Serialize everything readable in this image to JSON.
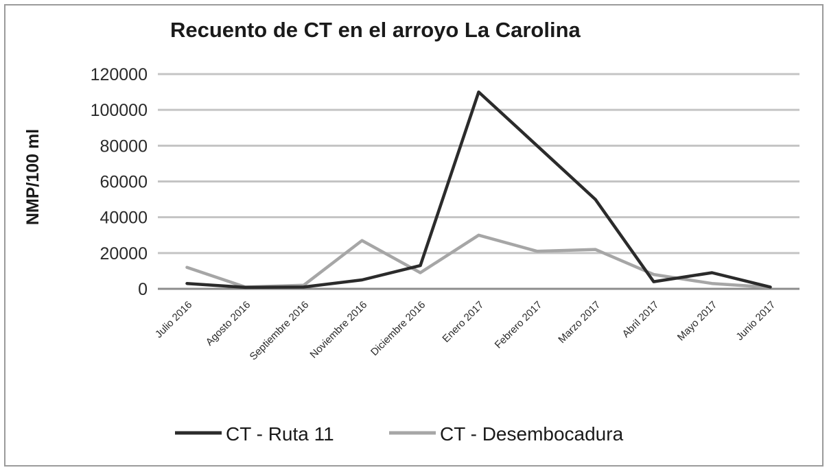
{
  "chart_data": {
    "type": "line",
    "title": "Recuento de CT en el arroyo La Carolina",
    "xlabel": "",
    "ylabel": "NMP/100 ml",
    "ylim": [
      0,
      120000
    ],
    "yticks": [
      0,
      20000,
      40000,
      60000,
      80000,
      100000,
      120000
    ],
    "grid": true,
    "legend_position": "bottom",
    "categories": [
      "Julio 2016",
      "Agosto 2016",
      "Septiembre 2016",
      "Noviembre 2016",
      "Diciembre 2016",
      "Enero 2017",
      "Febrero 2017",
      "Marzo 2017",
      "Abril 2017",
      "Mayo 2017",
      "Junio 2017"
    ],
    "series": [
      {
        "name": "CT - Ruta 11",
        "color": "#2b2b2b",
        "values": [
          3000,
          800,
          1000,
          5000,
          13000,
          110000,
          80000,
          50000,
          4000,
          9000,
          1000
        ]
      },
      {
        "name": "CT - Desembocadura",
        "color": "#a6a6a6",
        "values": [
          12000,
          1000,
          2000,
          27000,
          9000,
          30000,
          21000,
          22000,
          8000,
          3000,
          800
        ]
      }
    ]
  }
}
